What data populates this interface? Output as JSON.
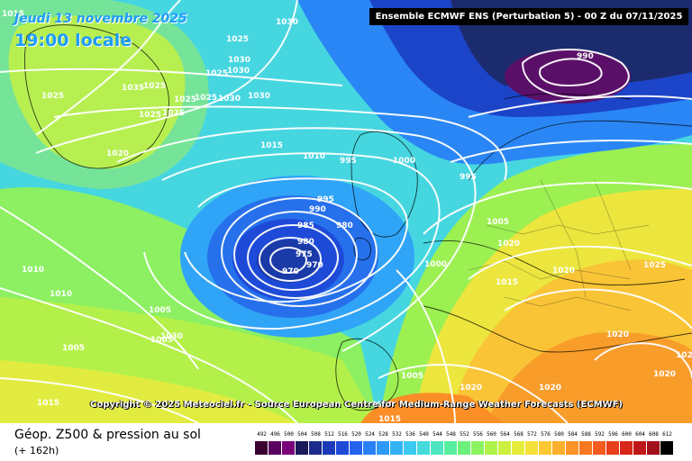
{
  "map": {
    "date": "Jeudi 13 novembre 2025",
    "local_time": "19:00 locale",
    "run_info": "Ensemble ECMWF ENS  (Perturbation 5)  -  00 Z du 07/11/2025",
    "copyright": "Copyright © 2025 Meteociel.fr - Source European Centre for Medium-Range Weather Forecasts (ECMWF)",
    "parameter": "Géop. Z500 & pression au sol",
    "lead_time": "(+ 162h)",
    "isobar_labels": [
      "1015",
      "1030",
      "1025",
      "1030",
      "1025",
      "1030",
      "1035",
      "1025",
      "1025",
      "1025",
      "1025",
      "1030",
      "1030",
      "1025",
      "1025",
      "1020",
      "1015",
      "1010",
      "995",
      "1000",
      "995",
      "990",
      "995",
      "990",
      "985",
      "980",
      "980",
      "975",
      "970",
      "970",
      "1000",
      "1005",
      "1010",
      "1020",
      "1015",
      "1025",
      "1020",
      "1005",
      "1010",
      "1005",
      "1030",
      "1005",
      "1015",
      "1020",
      "1020",
      "1005",
      "1020",
      "1010",
      "1015",
      "1020",
      "1020"
    ],
    "legend_values": [
      "492",
      "496",
      "500",
      "504",
      "508",
      "512",
      "516",
      "520",
      "524",
      "528",
      "532",
      "536",
      "540",
      "544",
      "548",
      "552",
      "556",
      "560",
      "564",
      "568",
      "572",
      "576",
      "580",
      "584",
      "588",
      "592",
      "596",
      "600",
      "604",
      "608",
      "612"
    ],
    "legend_colors": [
      "#3a0030",
      "#5a0060",
      "#7a007a",
      "#1a1a5a",
      "#1c2a8c",
      "#1a3ab8",
      "#1e4ad8",
      "#2464ee",
      "#2a80f6",
      "#2e9af8",
      "#34b2f6",
      "#3ccaf0",
      "#46dadc",
      "#4ee6c0",
      "#58eea0",
      "#6cf27c",
      "#8cf260",
      "#aef24a",
      "#ccf040",
      "#e6ec3c",
      "#f6e03a",
      "#fcc834",
      "#fcb02e",
      "#fc9428",
      "#f87822",
      "#f25c1e",
      "#e8401c",
      "#d8281a",
      "#c01818",
      "#a0101a",
      "#000000"
    ],
    "colors": {
      "label_blue": "#1e9cff",
      "deep_low": "#0a1c6a",
      "high_yellow": "#f4e84a"
    }
  }
}
